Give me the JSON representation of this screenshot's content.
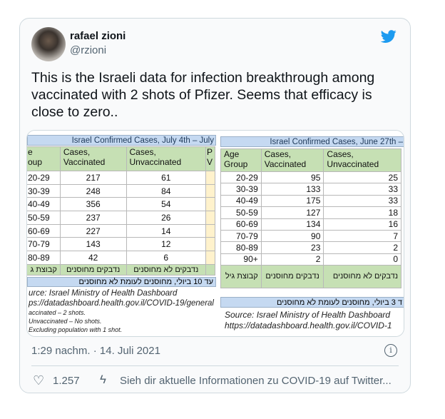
{
  "tweet": {
    "name": "rafael zioni",
    "handle": "@rzioni",
    "text": "This is the Israeli data for infection breakthrough among vaccinated with 2 shots of Pfizer. Seems that efficacy is close to zero..",
    "time": "1:29 nachm. · 14. Juli 2021",
    "likes": "1.257",
    "covid_link": "Sieh dir aktuelle Informationen zu COVID-19 auf Twitter...",
    "brand_color": "#1d9bf0"
  },
  "left_table": {
    "title": "Israel Confirmed Cases, July 4th – July",
    "headers": [
      "e\nоup",
      "Cases,\nVaccinated",
      "Cases,\nUnvaccinated",
      "P\nV"
    ],
    "rows": [
      [
        "20-29",
        "217",
        "61"
      ],
      [
        "30-39",
        "248",
        "84"
      ],
      [
        "40-49",
        "356",
        "54"
      ],
      [
        "50-59",
        "237",
        "26"
      ],
      [
        "60-69",
        "227",
        "14"
      ],
      [
        "70-79",
        "143",
        "12"
      ],
      [
        "80-89",
        "42",
        "6"
      ]
    ],
    "hebrew_headers": [
      "קבוצת ג",
      "נדבקים מחוסנים",
      "נדבקים לא מחוסנים"
    ],
    "note": "עד 10 ביולי, מחוסנים לעומת לא מחוסנים",
    "source": [
      "urce: Israel Ministry of Health Dashboard",
      "ps://datadashboard.health.gov.il/COVID-19/general"
    ],
    "footnotes": [
      "accinated – 2 shots.",
      "Unvaccinated – No shots.",
      "Excluding population with 1 shot."
    ]
  },
  "right_table": {
    "title": "Israel Confirmed Cases, June 27th –",
    "headers": [
      "Age\nGroup",
      "Cases,\nVaccinated",
      "Cases,\nUnvaccinated"
    ],
    "rows": [
      [
        "20-29",
        "95",
        "25"
      ],
      [
        "30-39",
        "133",
        "33"
      ],
      [
        "40-49",
        "175",
        "33"
      ],
      [
        "50-59",
        "127",
        "18"
      ],
      [
        "60-69",
        "134",
        "16"
      ],
      [
        "70-79",
        "90",
        "7"
      ],
      [
        "80-89",
        "23",
        "2"
      ],
      [
        "90+",
        "2",
        "0"
      ]
    ],
    "hebrew_headers": [
      "קבוצת גיל",
      "נדבקים מחוסנים",
      "נדבקים לא מחוסנים"
    ],
    "note": "ד 3 ביולי, מחוסנים לעומת לא מחוסנים",
    "source": [
      "Source: Israel Ministry of Health Dashboard",
      "https://datadashboard.health.gov.il/COVID-1"
    ]
  }
}
